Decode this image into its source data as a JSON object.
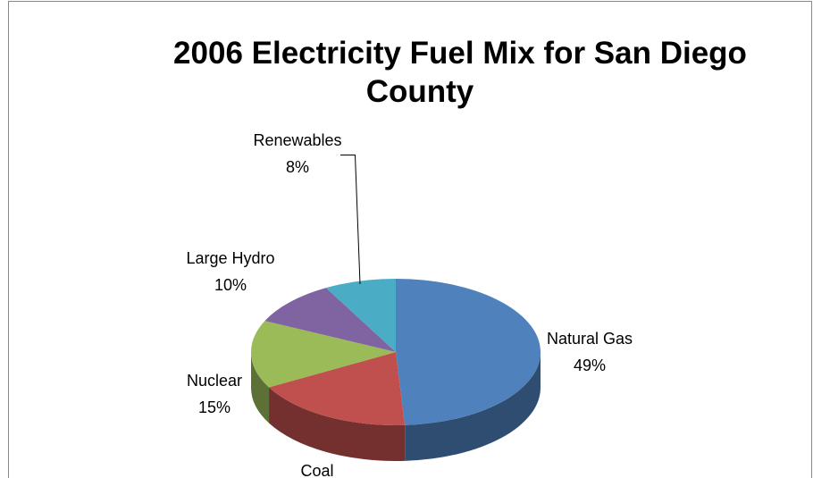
{
  "chart_data": {
    "type": "pie",
    "title": "2006 Electricity Fuel Mix for San Diego County",
    "categories": [
      "Natural Gas",
      "Coal",
      "Nuclear",
      "Large Hydro",
      "Renewables"
    ],
    "values": [
      49,
      18,
      15,
      10,
      8
    ],
    "value_labels": [
      "49%",
      null,
      "15%",
      "10%",
      "8%"
    ],
    "colors": [
      "#4F81BD",
      "#C0504D",
      "#9BBB59",
      "#8064A2",
      "#4BACC6"
    ]
  }
}
